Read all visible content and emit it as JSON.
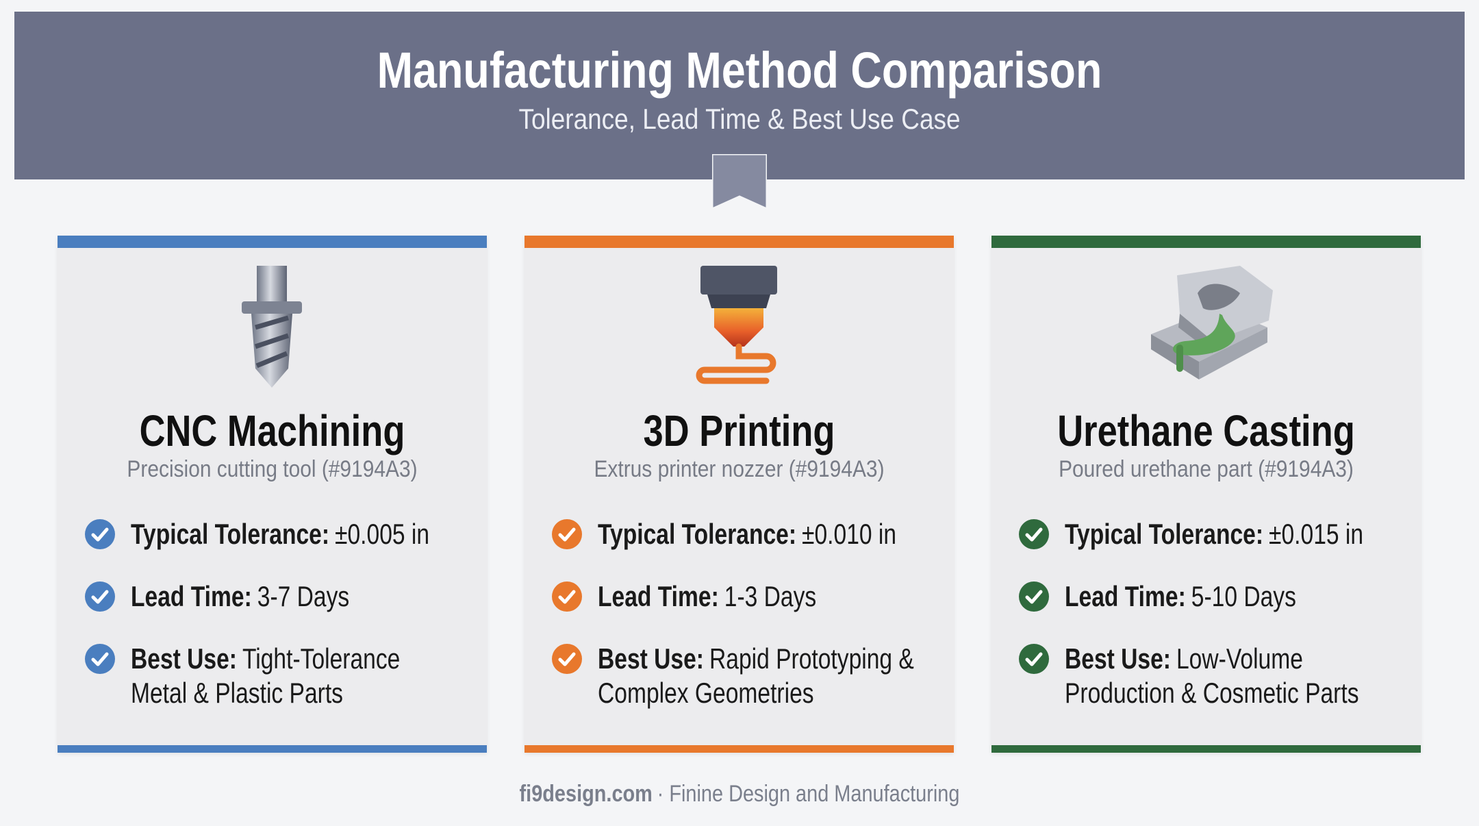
{
  "header": {
    "title": "Manufacturing Method Comparison",
    "subtitle": "Tolerance, Lead Time & Best Use Case"
  },
  "cards": [
    {
      "title": "CNC Machining",
      "caption": "Precision cutting tool (#9194A3)",
      "items": [
        {
          "label": "Typical Tolerance:",
          "value": "±0.005 in"
        },
        {
          "label": "Lead Time:",
          "value": "3-7 Days"
        },
        {
          "label": "Best Use:",
          "value": "Tight-Tolerance Metal & Plastic Parts"
        }
      ]
    },
    {
      "title": "3D Printing",
      "caption": "Extrus printer nozzer (#9194A3)",
      "items": [
        {
          "label": "Typical Tolerance:",
          "value": "±0.010 in"
        },
        {
          "label": "Lead Time:",
          "value": "1-3 Days"
        },
        {
          "label": "Best Use:",
          "value": "Rapid Prototyping & Complex Geometries"
        }
      ]
    },
    {
      "title": "Urethane Casting",
      "caption": "Poured urethane part (#9194A3)",
      "items": [
        {
          "label": "Typical Tolerance:",
          "value": "±0.015 in"
        },
        {
          "label": "Lead Time:",
          "value": "5-10 Days"
        },
        {
          "label": "Best Use:",
          "value": "Low-Volume Production & Cosmetic Parts"
        }
      ]
    }
  ],
  "footer": {
    "brand": "fi9design.com",
    "tagline": "· Finine Design and Manufacturing"
  }
}
